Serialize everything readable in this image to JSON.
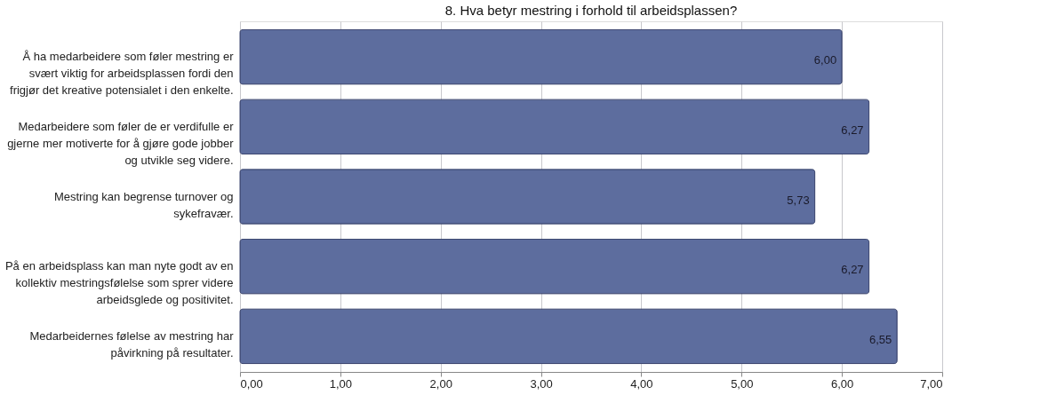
{
  "chart_data": {
    "type": "bar",
    "orientation": "horizontal",
    "title": "8. Hva betyr mestring i forhold til arbeidsplassen?",
    "categories": [
      "Å ha medarbeidere som føler mestring er\nsvært viktig for arbeidsplassen fordi den\nfrigjør det kreative potensialet i den enkelte.",
      "Medarbeidere som føler de er verdifulle er\ngjerne mer motiverte for å gjøre gode jobber\nog utvikle seg videre.",
      "Mestring kan begrense turnover og\nsykefravær.",
      "På en arbeidsplass kan man nyte godt av en\nkollektiv mestringsfølelse som sprer videre\narbeidsglede og positivitet.",
      "Medarbeidernes følelse av mestring har\npåvirkning på resultater."
    ],
    "values": [
      6.0,
      6.27,
      5.73,
      6.27,
      6.55
    ],
    "value_labels": [
      "6,00",
      "6,27",
      "5,73",
      "6,27",
      "6,55"
    ],
    "color": "#5d6d9e",
    "xlim": [
      0,
      7
    ],
    "xticks": [
      {
        "value": 0,
        "label": "0,00"
      },
      {
        "value": 1,
        "label": "1,00"
      },
      {
        "value": 2,
        "label": "2,00"
      },
      {
        "value": 3,
        "label": "3,00"
      },
      {
        "value": 4,
        "label": "4,00"
      },
      {
        "value": 5,
        "label": "5,00"
      },
      {
        "value": 6,
        "label": "6,00"
      },
      {
        "value": 7,
        "label": "7,00"
      }
    ],
    "grid": "x"
  }
}
